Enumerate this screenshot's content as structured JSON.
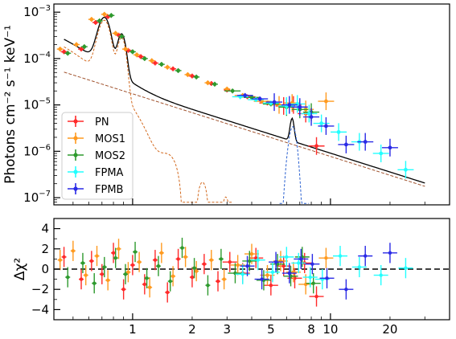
{
  "chart_data": [
    {
      "type": "scatter",
      "panel": "spectrum",
      "ylabel": "Photons cm⁻² s⁻¹ keV⁻¹",
      "xlabel": "",
      "x_scale": "log",
      "y_scale": "log",
      "xlim": [
        0.4,
        40
      ],
      "ylim": [
        7e-08,
        0.0015
      ],
      "y_tick_labels": [
        {
          "value": 0.001,
          "base": "10",
          "exp": "−3"
        },
        {
          "value": 0.0001,
          "base": "10",
          "exp": "−4"
        },
        {
          "value": 1e-05,
          "base": "10",
          "exp": "−5"
        },
        {
          "value": 1e-06,
          "base": "10",
          "exp": "−6"
        },
        {
          "value": 1e-07,
          "base": "10",
          "exp": "−7"
        }
      ],
      "legend_position": "lower-left",
      "series": [
        {
          "name": "PN",
          "color": "#ff2a2a",
          "x": [
            0.45,
            0.55,
            0.65,
            0.75,
            0.85,
            0.95,
            1.1,
            1.3,
            1.6,
            2.0,
            2.5,
            3.0,
            3.8,
            4.8,
            5.8,
            6.5,
            7.5,
            8.5
          ],
          "y": [
            0.00014,
            0.00016,
            0.0006,
            0.0008,
            0.00032,
            0.00015,
            0.00011,
            8e-05,
            6e-05,
            4.2e-05,
            2.9e-05,
            2.1e-05,
            1.5e-05,
            1.1e-05,
            9.5e-06,
            1e-05,
            6.5e-06,
            1.3e-06
          ]
        },
        {
          "name": "MOS1",
          "color": "#ff9a1f",
          "x": [
            0.43,
            0.52,
            0.62,
            0.72,
            0.82,
            0.92,
            1.05,
            1.25,
            1.5,
            1.9,
            2.4,
            3.0,
            3.6,
            4.5,
            5.5,
            6.4,
            7.5,
            9.5
          ],
          "y": [
            0.00016,
            0.0002,
            0.0007,
            0.0009,
            0.00035,
            0.00016,
            0.00012,
            9e-05,
            6.5e-05,
            4.5e-05,
            3e-05,
            2.2e-05,
            1.6e-05,
            1.2e-05,
            1e-05,
            1.1e-05,
            8e-06,
            1.2e-05
          ]
        },
        {
          "name": "MOS2",
          "color": "#2e9a2e",
          "x": [
            0.47,
            0.57,
            0.68,
            0.78,
            0.88,
            1.0,
            1.15,
            1.4,
            1.7,
            2.1,
            2.6,
            3.2,
            4.0,
            5.0,
            6.0,
            7.0,
            8.0
          ],
          "y": [
            0.00013,
            0.00018,
            0.00065,
            0.00085,
            0.0003,
            0.00014,
            0.0001,
            7.5e-05,
            5.5e-05,
            4e-05,
            2.8e-05,
            2e-05,
            1.45e-05,
            1.05e-05,
            9e-06,
            8e-06,
            7e-06
          ]
        },
        {
          "name": "FPMA",
          "color": "#22ffff",
          "x": [
            3.5,
            4.2,
            5.0,
            6.0,
            6.8,
            7.8,
            9.0,
            11.0,
            14.0,
            18.0,
            24.0
          ],
          "y": [
            1.5e-05,
            1.3e-05,
            1.1e-05,
            9.5e-06,
            1.05e-05,
            6.5e-06,
            4e-06,
            2.6e-06,
            1.6e-06,
            9e-07,
            4e-07
          ]
        },
        {
          "name": "FPMB",
          "color": "#2a2ae6",
          "x": [
            3.7,
            4.4,
            5.2,
            6.2,
            7.0,
            8.0,
            9.5,
            12.0,
            15.0,
            20.0
          ],
          "y": [
            1.6e-05,
            1.35e-05,
            1.15e-05,
            1e-05,
            9e-06,
            5.5e-06,
            3.5e-06,
            1.4e-06,
            1.6e-06,
            1.2e-06
          ]
        }
      ]
    },
    {
      "type": "scatter",
      "panel": "residuals",
      "ylabel": "Δχ²",
      "x_scale": "log",
      "xlim": [
        0.4,
        40
      ],
      "ylim": [
        -5,
        5
      ],
      "y_ticks": [
        4,
        2,
        0,
        -2,
        -4
      ],
      "x_tick_labels": [
        "1",
        "2",
        "3",
        "5",
        "8",
        "10",
        "20"
      ],
      "x_ticks": [
        1,
        2,
        3,
        5,
        8,
        10,
        20
      ],
      "reference_line": 0,
      "series": [
        {
          "name": "PN",
          "color": "#ff2a2a",
          "x": [
            0.45,
            0.55,
            0.62,
            0.7,
            0.8,
            0.9,
            1.0,
            1.15,
            1.3,
            1.5,
            1.7,
            2.0,
            2.3,
            2.7,
            3.1,
            3.6,
            4.2,
            5.0,
            5.8,
            6.6,
            7.4,
            8.5
          ],
          "y": [
            1.2,
            -1.0,
            0.8,
            -0.5,
            1.6,
            -2.0,
            0.4,
            -1.5,
            0.9,
            -2.3,
            1.0,
            -0.8,
            0.5,
            -1.2,
            0.7,
            -0.4,
            1.1,
            -1.6,
            0.3,
            -0.9,
            0.6,
            -2.7
          ]
        },
        {
          "name": "MOS1",
          "color": "#ff9a1f",
          "x": [
            0.43,
            0.5,
            0.58,
            0.66,
            0.75,
            0.85,
            0.95,
            1.08,
            1.22,
            1.4,
            1.6,
            1.85,
            2.1,
            2.5,
            2.9,
            3.4,
            4.0,
            4.8,
            5.6,
            6.5,
            7.5,
            9.5
          ],
          "y": [
            0.9,
            1.8,
            -0.6,
            1.3,
            -1.1,
            2.0,
            -0.3,
            0.7,
            -1.8,
            1.6,
            -0.7,
            1.2,
            -0.2,
            0.9,
            -1.0,
            0.4,
            1.5,
            -0.6,
            0.8,
            -0.3,
            -1.5,
            1.1
          ]
        },
        {
          "name": "MOS2",
          "color": "#2e9a2e",
          "x": [
            0.47,
            0.56,
            0.64,
            0.72,
            0.82,
            0.92,
            1.03,
            1.18,
            1.35,
            1.55,
            1.78,
            2.05,
            2.4,
            2.8,
            3.3,
            3.9,
            4.6,
            5.4,
            6.3,
            7.2,
            8.2
          ],
          "y": [
            -0.8,
            0.6,
            -1.4,
            0.2,
            1.1,
            -0.5,
            1.7,
            -0.9,
            0.3,
            -1.2,
            2.1,
            0.1,
            -1.6,
            1.0,
            -0.4,
            0.8,
            -1.1,
            0.5,
            -0.7,
            1.2,
            -1.4
          ]
        },
        {
          "name": "FPMA",
          "color": "#22ffff",
          "x": [
            3.6,
            4.3,
            5.1,
            6.0,
            6.9,
            7.9,
            9.1,
            11.2,
            14.0,
            18.0,
            24.0
          ],
          "y": [
            -0.5,
            0.9,
            -0.3,
            1.2,
            0.6,
            -0.8,
            -1.0,
            1.3,
            0.2,
            -0.6,
            0.1
          ]
        },
        {
          "name": "FPMB",
          "color": "#2a2ae6",
          "x": [
            3.8,
            4.5,
            5.3,
            6.2,
            7.1,
            8.1,
            9.6,
            12.0,
            15.0,
            20.0
          ],
          "y": [
            0.3,
            -1.0,
            0.7,
            -0.4,
            1.0,
            0.5,
            -0.9,
            -2.0,
            1.3,
            1.6
          ]
        }
      ]
    }
  ]
}
